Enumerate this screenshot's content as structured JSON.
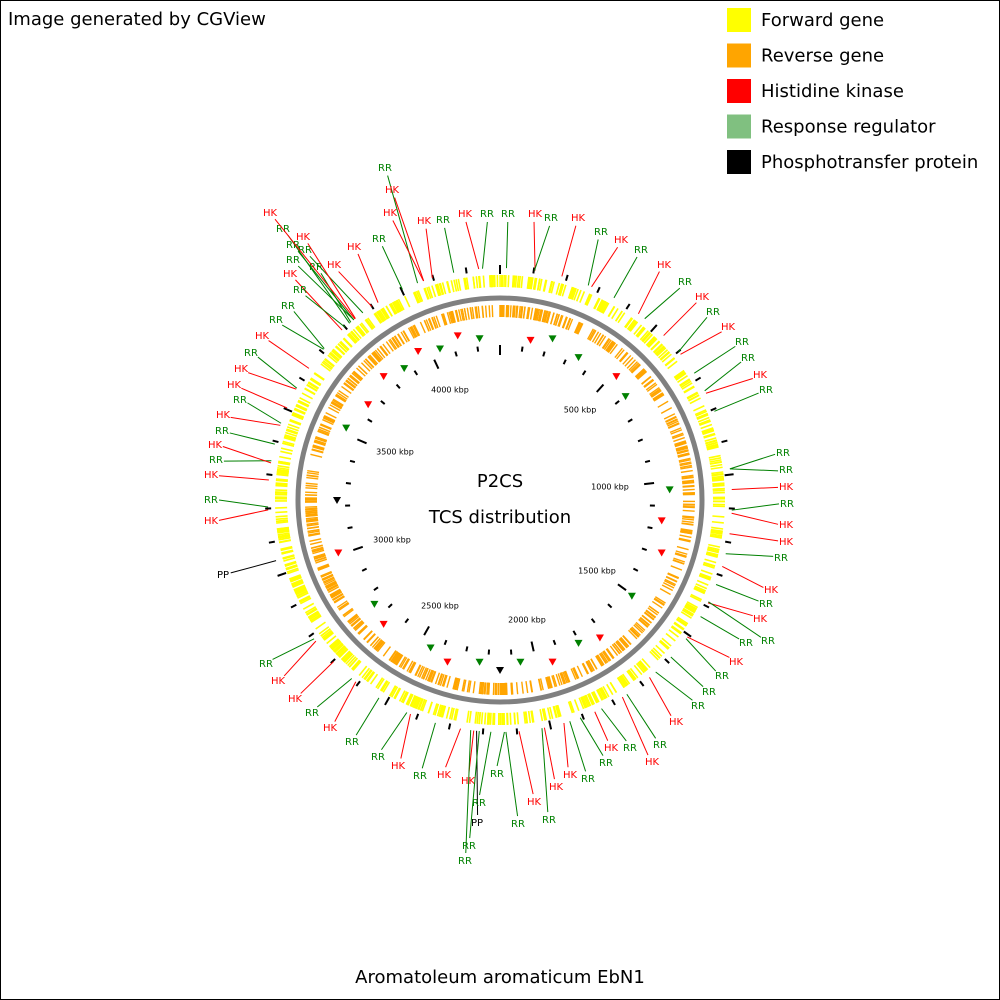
{
  "header": {
    "credit": "Image generated by CGView"
  },
  "legend": [
    {
      "label": "Forward gene",
      "color": "#ffff00"
    },
    {
      "label": "Reverse gene",
      "color": "#ffa500"
    },
    {
      "label": "Histidine kinase",
      "color": "#ff0000"
    },
    {
      "label": "Response regulator",
      "color": "#80c080"
    },
    {
      "label": "Phosphotransfer protein",
      "color": "#000000"
    }
  ],
  "center": {
    "title": "P2CS",
    "subtitle": "TCS distribution"
  },
  "footer": "Aromatoleum aromaticum EbN1",
  "scale_labels": [
    "500 kbp",
    "1000 kbp",
    "1500 kbp",
    "2000 kbp",
    "2500 kbp",
    "3000 kbp",
    "3500 kbp",
    "4000 kbp"
  ],
  "feature_labels": [
    "RR",
    "HK",
    "HK",
    "HK",
    "RR",
    "HK",
    "RR",
    "RR",
    "HK",
    "RR",
    "HK",
    "RR",
    "HK",
    "RR",
    "HK",
    "RR",
    "HK",
    "RR",
    "HK",
    "RR",
    "RR",
    "HK",
    "RR",
    "RR",
    "RR",
    "HK",
    "RR",
    "HK",
    "HK",
    "RR",
    "HK",
    "RR",
    "HK",
    "RR",
    "RR",
    "HK",
    "RR",
    "RR",
    "RR",
    "HK",
    "RR",
    "RR",
    "HK",
    "HK",
    "RR",
    "HK",
    "RR",
    "HK",
    "RR",
    "HK",
    "RR",
    "RR",
    "HK",
    "PP",
    "RR",
    "RR",
    "RR",
    "HK",
    "RR",
    "HK",
    "RR",
    "RR",
    "HK",
    "RR",
    "HK",
    "HK",
    "RR",
    "PP",
    "HK",
    "RR",
    "HK",
    "RR",
    "HK",
    "RR",
    "HK",
    "RR",
    "HK",
    "HK",
    "RR",
    "HK",
    "RR",
    "RR",
    "HK",
    "RR",
    "RR",
    "RR",
    "HK",
    "RR",
    "RR",
    "RR",
    "HK",
    "HK",
    "RR",
    "HK"
  ]
}
